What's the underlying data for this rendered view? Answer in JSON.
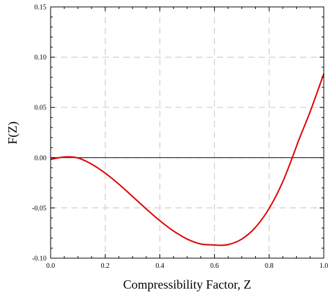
{
  "chart_data": {
    "type": "line",
    "title": "",
    "xlabel": "Compressibility Factor, Z",
    "ylabel": "F(Z)",
    "xlim": [
      0.0,
      1.0
    ],
    "ylim": [
      -0.1,
      0.15
    ],
    "x_ticks": [
      "0.0",
      "0.2",
      "0.4",
      "0.6",
      "0.8",
      "1.0"
    ],
    "y_ticks": [
      "-0.10",
      "-0.05",
      "0.00",
      "0.05",
      "0.10",
      "0.15"
    ],
    "grid": true,
    "reference_line_y": 0.0,
    "series": [
      {
        "color": "#e00000",
        "x": [
          0.0,
          0.02,
          0.04,
          0.066,
          0.1,
          0.15,
          0.2,
          0.25,
          0.3,
          0.35,
          0.4,
          0.45,
          0.5,
          0.55,
          0.6,
          0.624,
          0.65,
          0.7,
          0.75,
          0.8,
          0.85,
          0.9,
          0.905,
          0.95,
          1.0
        ],
        "y": [
          -0.0017,
          -0.0006,
          0.0004,
          0.0008,
          -0.0003,
          -0.0064,
          -0.0154,
          -0.0264,
          -0.0386,
          -0.051,
          -0.0627,
          -0.073,
          -0.081,
          -0.0859,
          -0.0869,
          -0.0872,
          -0.0865,
          -0.081,
          -0.0693,
          -0.0505,
          -0.0239,
          0.0112,
          0.015,
          0.0456,
          0.0835
        ]
      }
    ]
  }
}
